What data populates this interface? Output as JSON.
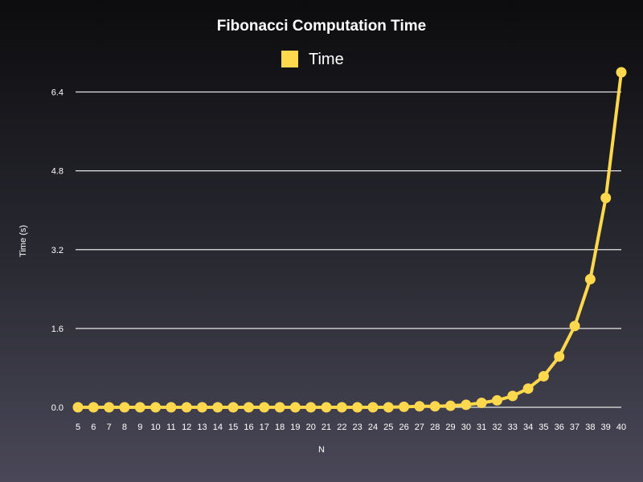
{
  "chart_data": {
    "type": "line",
    "title": "Fibonacci Computation Time",
    "xlabel": "N",
    "ylabel": "Time (s)",
    "ylim": [
      0,
      6.8
    ],
    "yticks": [
      0.0,
      1.6,
      3.2,
      4.8,
      6.4
    ],
    "ytick_labels": [
      "0.0",
      "1.6",
      "3.2",
      "4.8",
      "6.4"
    ],
    "grid": true,
    "legend_position": "top",
    "x": [
      5,
      6,
      7,
      8,
      9,
      10,
      11,
      12,
      13,
      14,
      15,
      16,
      17,
      18,
      19,
      20,
      21,
      22,
      23,
      24,
      25,
      26,
      27,
      28,
      29,
      30,
      31,
      32,
      33,
      34,
      35,
      36,
      37,
      38,
      39,
      40
    ],
    "series": [
      {
        "name": "Time",
        "color": "#ffd84d",
        "values": [
          0.0,
          0.0,
          0.0,
          0.0,
          0.0,
          0.0,
          0.0,
          0.0,
          0.0,
          0.0,
          0.0,
          0.0,
          0.0,
          0.0,
          0.0,
          0.0,
          0.0,
          0.0,
          0.0,
          0.0,
          0.0,
          0.01,
          0.02,
          0.02,
          0.03,
          0.05,
          0.09,
          0.14,
          0.23,
          0.38,
          0.63,
          1.03,
          1.65,
          2.6,
          4.25,
          6.8
        ]
      }
    ]
  }
}
